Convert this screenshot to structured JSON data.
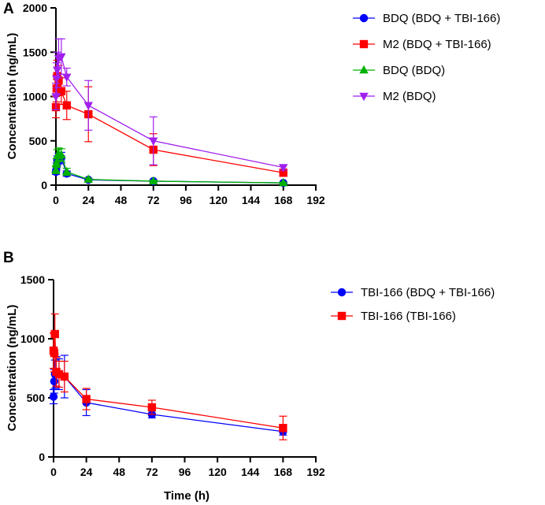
{
  "chart_data": [
    {
      "type": "line",
      "panel_label": "A",
      "title": "",
      "xlabel": "",
      "ylabel": "Concentration (ng/mL)",
      "xlim": [
        0,
        192
      ],
      "ylim": [
        0,
        2000
      ],
      "x_ticks": [
        0,
        24,
        48,
        72,
        96,
        120,
        144,
        168,
        192
      ],
      "y_ticks": [
        0,
        500,
        1000,
        1500,
        2000
      ],
      "grid": false,
      "legend_position": "top-right",
      "series": [
        {
          "name": "BDQ (BDQ + TBI-166)",
          "color": "#0000ff",
          "marker": "circle",
          "x": [
            0,
            0.5,
            1,
            2,
            4,
            8,
            24,
            72,
            168
          ],
          "y": [
            150,
            210,
            280,
            300,
            310,
            130,
            60,
            45,
            25
          ],
          "err": [
            30,
            40,
            50,
            60,
            60,
            30,
            15,
            10,
            8
          ]
        },
        {
          "name": "M2 (BDQ + TBI-166)",
          "color": "#ff0000",
          "marker": "square",
          "x": [
            0,
            0.5,
            1,
            2,
            4,
            8,
            24,
            72,
            168
          ],
          "y": [
            880,
            1090,
            1230,
            1180,
            1060,
            900,
            800,
            400,
            140
          ],
          "err": [
            120,
            150,
            180,
            170,
            150,
            160,
            310,
            180,
            40
          ]
        },
        {
          "name": "BDQ (BDQ)",
          "color": "#00b000",
          "marker": "triangle-up",
          "x": [
            0,
            0.5,
            1,
            2,
            4,
            8,
            24,
            72,
            168
          ],
          "y": [
            170,
            250,
            330,
            350,
            340,
            150,
            65,
            45,
            25
          ],
          "err": [
            40,
            50,
            70,
            70,
            70,
            40,
            15,
            10,
            8
          ]
        },
        {
          "name": "M2 (BDQ)",
          "color": "#a020f0",
          "marker": "triangle-down",
          "x": [
            0,
            0.5,
            1,
            2,
            4,
            8,
            24,
            72,
            168
          ],
          "y": [
            1000,
            1200,
            1300,
            1430,
            1450,
            1220,
            900,
            500,
            200
          ],
          "err": [
            150,
            180,
            200,
            220,
            200,
            100,
            280,
            270,
            30
          ]
        }
      ]
    },
    {
      "type": "line",
      "panel_label": "B",
      "title": "",
      "xlabel": "Time (h)",
      "ylabel": "Concentration (ng/mL)",
      "xlim": [
        0,
        192
      ],
      "ylim": [
        0,
        1500
      ],
      "x_ticks": [
        0,
        24,
        48,
        72,
        96,
        120,
        144,
        168,
        192
      ],
      "y_ticks": [
        0,
        500,
        1000,
        1500
      ],
      "grid": false,
      "legend_position": "right",
      "series": [
        {
          "name": "TBI-166 (BDQ + TBI-166)",
          "color": "#0000ff",
          "marker": "circle",
          "x": [
            0,
            0.5,
            1,
            2,
            4,
            8,
            24,
            72,
            168
          ],
          "y": [
            510,
            640,
            700,
            720,
            700,
            680,
            460,
            360,
            215
          ],
          "err": [
            60,
            100,
            120,
            130,
            130,
            180,
            110,
            30,
            30
          ]
        },
        {
          "name": "TBI-166 (TBI-166)",
          "color": "#ff0000",
          "marker": "square",
          "x": [
            0,
            0.5,
            1,
            2,
            4,
            8,
            24,
            72,
            168
          ],
          "y": [
            900,
            880,
            1040,
            720,
            700,
            680,
            490,
            420,
            245
          ],
          "err": [
            150,
            160,
            170,
            120,
            110,
            130,
            90,
            60,
            100
          ]
        }
      ]
    }
  ]
}
